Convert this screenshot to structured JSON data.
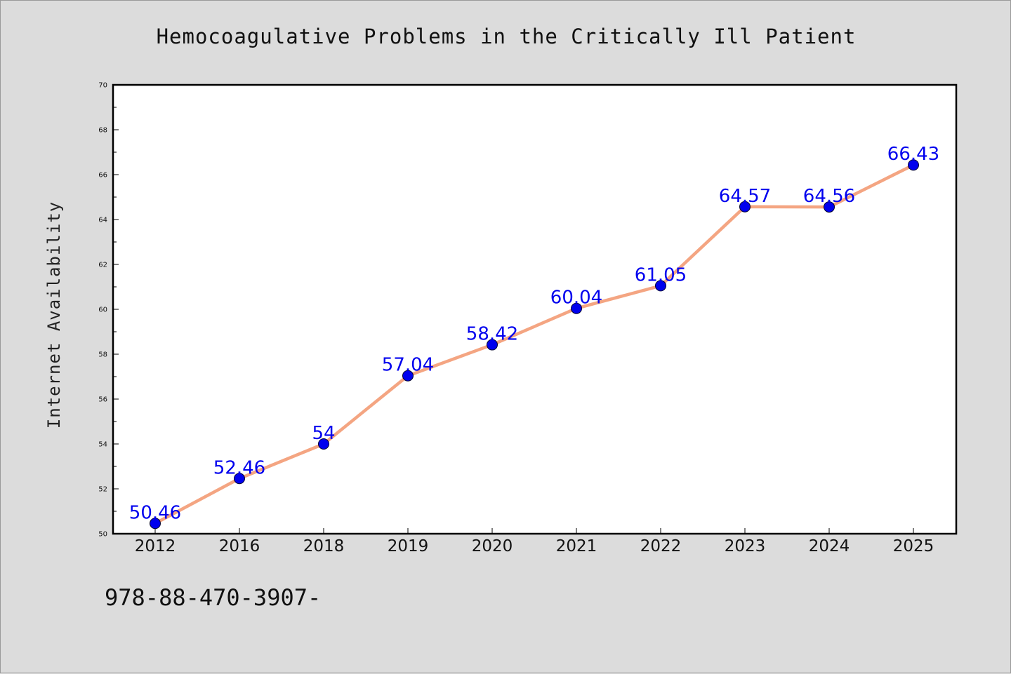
{
  "chart_data": {
    "type": "line",
    "title": "Hemocoagulative Problems in the Critically Ill Patient",
    "ylabel": "Internet Availability",
    "xlabel": "",
    "categories": [
      "2012",
      "2016",
      "2018",
      "2019",
      "2020",
      "2021",
      "2022",
      "2023",
      "2024",
      "2025"
    ],
    "values": [
      50.46,
      52.46,
      54,
      57.04,
      58.42,
      60.04,
      61.05,
      64.57,
      64.56,
      66.43
    ],
    "data_labels": [
      "50.46",
      "52.46",
      "54",
      "57.04",
      "58.42",
      "60.04",
      "61.05",
      "64.57",
      "64.56",
      "66.43"
    ],
    "ylim": [
      50,
      70
    ],
    "yticks": [
      "50",
      "52",
      "54",
      "56",
      "58",
      "60",
      "62",
      "64",
      "66",
      "68",
      "70"
    ],
    "grid": false,
    "line_color": "#f4a582",
    "marker_color": "#0000ee",
    "label_color": "#0000ee"
  },
  "footer_text": "978-88-470-3907-"
}
